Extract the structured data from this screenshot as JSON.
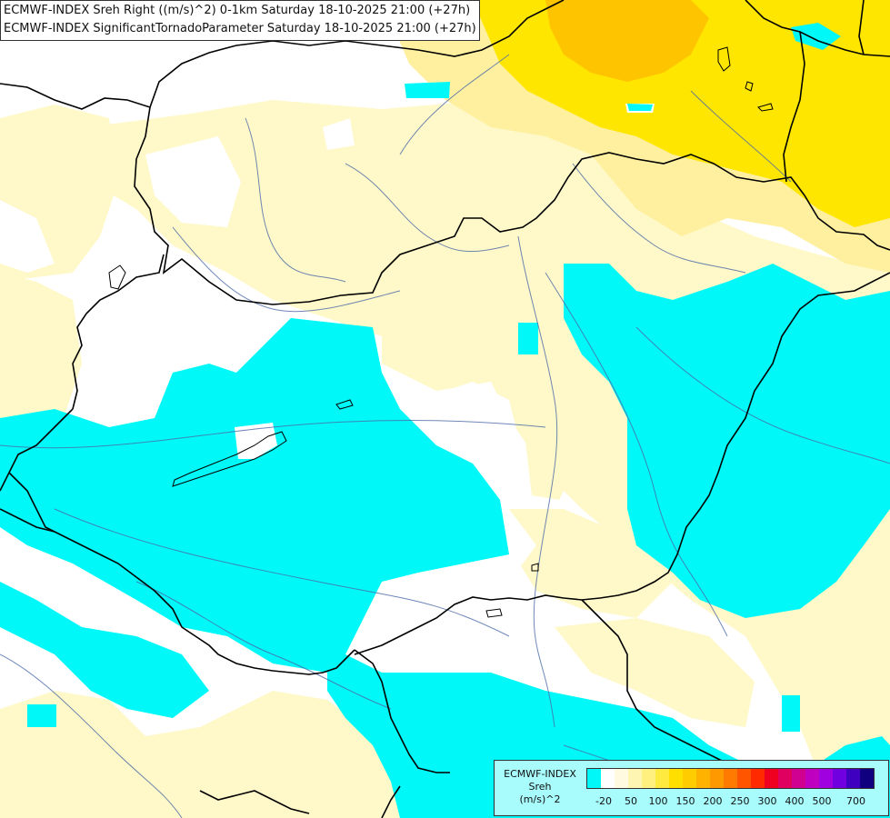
{
  "title_lines": [
    "ECMWF-INDEX Sreh Right ((m/s)^2) 0-1km Saturday 18-10-2025 21:00 (+27h)",
    "ECMWF-INDEX SignificantTornadoParameter Saturday 18-10-2025 21:00 (+27h)"
  ],
  "legend": {
    "name_lines": [
      "ECMWF-INDEX",
      "Sreh",
      "(m/s)^2"
    ],
    "colors": [
      "#00f8f8",
      "#ffffff",
      "#fffae0",
      "#fff5b3",
      "#fff080",
      "#ffea40",
      "#ffdf00",
      "#ffcc00",
      "#ffb200",
      "#ff9900",
      "#ff7a00",
      "#ff5500",
      "#ff2a00",
      "#f00020",
      "#e00060",
      "#d00090",
      "#c000c0",
      "#a000e0",
      "#7000e0",
      "#4000c0",
      "#100080"
    ],
    "tick_labels": [
      "-20",
      "50",
      "100",
      "150",
      "200",
      "250",
      "300",
      "400",
      "500",
      "700"
    ]
  },
  "colors": {
    "negative_cyan": "#00f8f8",
    "light_yellow": "#fff8c8",
    "yellow": "#ffe600",
    "orange": "#ffc400",
    "border": "#000000",
    "river": "#4a6aa8"
  }
}
